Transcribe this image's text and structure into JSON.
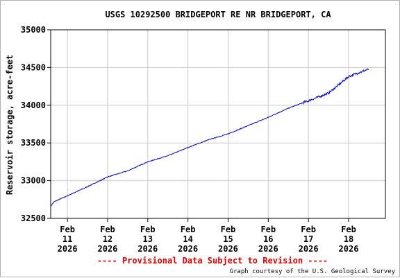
{
  "chart_data": {
    "type": "line",
    "title": "USGS 10292500 BRIDGEPORT RE NR BRIDGEPORT, CA",
    "ylabel": "Reservoir storage, acre-feet",
    "xlabel": "",
    "ylim": [
      32500,
      35000
    ],
    "yticks": [
      "32500",
      "33000",
      "33500",
      "34000",
      "34500",
      "35000"
    ],
    "xlim": [
      "2026-02-10 14:00",
      "2026-02-18 22:00"
    ],
    "xticks": [
      {
        "month": "Feb",
        "day": "11",
        "year": "2026"
      },
      {
        "month": "Feb",
        "day": "12",
        "year": "2026"
      },
      {
        "month": "Feb",
        "day": "13",
        "year": "2026"
      },
      {
        "month": "Feb",
        "day": "14",
        "year": "2026"
      },
      {
        "month": "Feb",
        "day": "15",
        "year": "2026"
      },
      {
        "month": "Feb",
        "day": "16",
        "year": "2026"
      },
      {
        "month": "Feb",
        "day": "17",
        "year": "2026"
      },
      {
        "month": "Feb",
        "day": "18",
        "year": "2026"
      }
    ],
    "grid": true,
    "line_color": "#0000cc",
    "series": [
      {
        "x": [
          "2026-02-10 14:00",
          "2026-02-10 16:00",
          "2026-02-11 00:00",
          "2026-02-11 12:00",
          "2026-02-12 00:00",
          "2026-02-12 12:00",
          "2026-02-13 00:00",
          "2026-02-13 12:00",
          "2026-02-14 00:00",
          "2026-02-14 12:00",
          "2026-02-15 00:00",
          "2026-02-15 12:00",
          "2026-02-16 00:00",
          "2026-02-16 12:00",
          "2026-02-17 00:00",
          "2026-02-17 12:00",
          "2026-02-18 00:00",
          "2026-02-18 12:00"
        ],
        "values": [
          32660,
          32720,
          32800,
          32920,
          33050,
          33130,
          33250,
          33330,
          33440,
          33540,
          33620,
          33730,
          33840,
          33960,
          34060,
          34160,
          34380,
          34480
        ]
      }
    ]
  },
  "footer": {
    "provisional": "---- Provisional Data Subject to Revision ----",
    "credit": "Graph courtesy of the U.S. Geological Survey"
  }
}
